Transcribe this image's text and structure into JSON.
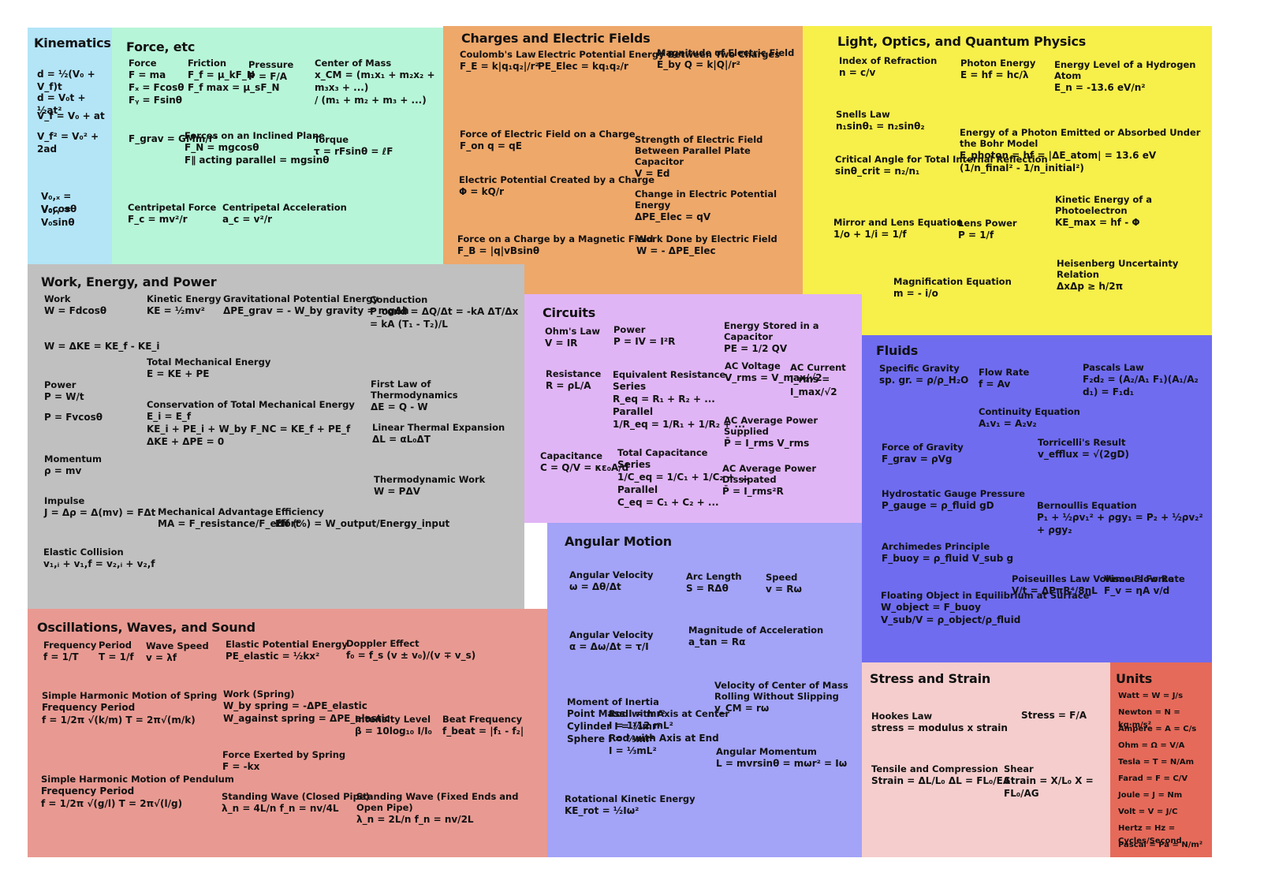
{
  "sections": [
    {
      "title": "Kinematics",
      "color": "#b3e5f7",
      "items": [
        {
          "lines": [
            "d = ½(V₀ + V_f)t"
          ]
        },
        {
          "lines": [
            "d = V₀t + ½at²"
          ]
        },
        {
          "lines": [
            "V_f = V₀ + at"
          ]
        },
        {
          "lines": [
            "V_f² = V₀² + 2ad"
          ]
        },
        {
          "lines": [
            "V₀,ₓ = V₀cosθ"
          ]
        },
        {
          "lines": [
            "V₀,ᵧ = V₀sinθ"
          ]
        }
      ]
    },
    {
      "title": "Force, etc",
      "color": "#b7f5d8",
      "items": [
        {
          "label": "Force",
          "lines": [
            "F = ma",
            "Fₓ = Fcosθ",
            "Fᵧ = Fsinθ"
          ]
        },
        {
          "label": "Friction",
          "lines": [
            "F_f = μ_kF_N",
            "F_f max = μ_sF_N"
          ]
        },
        {
          "label": "Pressure",
          "lines": [
            "P = F/A"
          ]
        },
        {
          "label": "Center of Mass",
          "lines": [
            "x_CM = (m₁x₁ + m₂x₂ + m₃x₃ + ...)",
            "/ (m₁ + m₂ + m₃ + ...)"
          ]
        },
        {
          "lines": [
            "F_grav = GMm/r²"
          ]
        },
        {
          "label": "Forces on an Inclined Plane",
          "lines": [
            "F_N = mgcosθ",
            "F∥ acting parallel = mgsinθ"
          ]
        },
        {
          "label": "Torque",
          "lines": [
            "τ = rFsinθ = ℓF"
          ]
        },
        {
          "label": "Centripetal Force",
          "lines": [
            "F_c = mv²/r"
          ]
        },
        {
          "label": "Centripetal Acceleration",
          "lines": [
            "a_c = v²/r"
          ]
        }
      ]
    },
    {
      "title": "Charges and Electric Fields",
      "color": "#eea86a",
      "items": [
        {
          "label": "Coulomb's Law",
          "lines": [
            "F_E = k|q₁q₂|/r²"
          ]
        },
        {
          "label": "Electric Potential Energy Between Two Charges",
          "lines": [
            "PE_Elec = kq₁q₂/r"
          ]
        },
        {
          "label": "Magnitude of Electric Field",
          "lines": [
            "E_by Q = k|Q|/r²"
          ]
        },
        {
          "label": "Force of Electric Field on a Charge",
          "lines": [
            "F_on q = qE"
          ]
        },
        {
          "label": "Strength of Electric Field Between Parallel Plate Capacitor",
          "lines": [
            "V = Ed"
          ]
        },
        {
          "label": "Electric Potential Created by a Charge",
          "lines": [
            "Φ = kQ/r"
          ]
        },
        {
          "label": "Change in Electric Potential Energy",
          "lines": [
            "ΔPE_Elec = qV"
          ]
        },
        {
          "label": "Force on a Charge by a Magnetic Field",
          "lines": [
            "F_B = |q|vBsinθ"
          ]
        },
        {
          "label": "Work Done by Electric Field",
          "lines": [
            "W = - ΔPE_Elec"
          ]
        }
      ]
    },
    {
      "title": "Light, Optics, and Quantum Physics",
      "color": "#f7ef4a",
      "items": [
        {
          "label": "Index of Refraction",
          "lines": [
            "n = c/v"
          ]
        },
        {
          "label": "Photon Energy",
          "lines": [
            "E = hf = hc/λ"
          ]
        },
        {
          "label": "Energy Level of a Hydrogen Atom",
          "lines": [
            "E_n = -13.6 eV/n²"
          ]
        },
        {
          "label": "Snells Law",
          "lines": [
            "n₁sinθ₁ = n₂sinθ₂"
          ]
        },
        {
          "label": "Energy of a Photon Emitted or Absorbed Under the Bohr Model",
          "lines": [
            "E_photon = hf = |ΔE_atom| = 13.6 eV (1/n_final² - 1/n_initial²)"
          ]
        },
        {
          "label": "Critical Angle for Total Internal Reflection",
          "lines": [
            "sinθ_crit = n₂/n₁"
          ]
        },
        {
          "label": "Kinetic Energy of a Photoelectron",
          "lines": [
            "KE_max = hf - Φ"
          ]
        },
        {
          "label": "Mirror and Lens Equation",
          "lines": [
            "1/o + 1/i = 1/f"
          ]
        },
        {
          "label": "Lens Power",
          "lines": [
            "P = 1/f"
          ]
        },
        {
          "label": "Heisenberg Uncertainty Relation",
          "lines": [
            "ΔxΔp ≥ h/2π"
          ]
        },
        {
          "label": "Magnification Equation",
          "lines": [
            "m = - i/o"
          ]
        }
      ]
    },
    {
      "title": "Work, Energy, and Power",
      "color": "#c0c0c0",
      "items": [
        {
          "label": "Work",
          "lines": [
            "W = Fdcosθ"
          ]
        },
        {
          "lines": [
            "W = ΔKE = KE_f - KE_i"
          ]
        },
        {
          "label": "Kinetic Energy",
          "lines": [
            "KE = ½mv²"
          ]
        },
        {
          "label": "Gravitational Potential Energy",
          "lines": [
            "ΔPE_grav = - W_by gravity = mgΔh"
          ]
        },
        {
          "label": "Conduction",
          "lines": [
            "P_cond = ΔQ/Δt = -kA ΔT/Δx = kA (T₁ - T₂)/L"
          ]
        },
        {
          "label": "Total Mechanical Energy",
          "lines": [
            "E = KE + PE"
          ]
        },
        {
          "label": "Power",
          "lines": [
            "P = W/t",
            "",
            "P = Fvcosθ"
          ]
        },
        {
          "label": "Conservation of Total Mechanical Energy",
          "lines": [
            "E_i = E_f",
            "KE_i + PE_i + W_by F_NC = KE_f + PE_f",
            "ΔKE + ΔPE = 0"
          ]
        },
        {
          "label": "First Law of Thermodynamics",
          "lines": [
            "ΔE = Q - W"
          ]
        },
        {
          "label": "Linear Thermal Expansion",
          "lines": [
            "ΔL = αL₀ΔT"
          ]
        },
        {
          "label": "Momentum",
          "lines": [
            "ρ = mv"
          ]
        },
        {
          "label": "Thermodynamic Work",
          "lines": [
            "W = PΔV"
          ]
        },
        {
          "label": "Impulse",
          "lines": [
            "J = Δρ = Δ(mv) = FΔt"
          ]
        },
        {
          "label": "Mechanical Advantage",
          "lines": [
            "MA = F_resistance/F_effort"
          ]
        },
        {
          "label": "Efficiency",
          "lines": [
            "Eff (%) = W_output/Energy_input"
          ]
        },
        {
          "label": "Elastic Collision",
          "lines": [
            "v₁,ᵢ + v₁,f = v₂,ᵢ + v₂,f"
          ]
        }
      ]
    },
    {
      "title": "Circuits",
      "color": "#e0b5f5",
      "items": [
        {
          "label": "Ohm's Law",
          "lines": [
            "V = IR"
          ]
        },
        {
          "label": "Power",
          "lines": [
            "P = IV = I²R"
          ]
        },
        {
          "label": "Energy Stored in a Capacitor",
          "lines": [
            "PE = 1/2 QV"
          ]
        },
        {
          "label": "Resistance",
          "lines": [
            "R = ρL/A"
          ]
        },
        {
          "label": "Equivalent Resistance",
          "lines": [
            "Series",
            "R_eq = R₁ + R₂ + ...",
            "Parallel",
            "1/R_eq = 1/R₁ + 1/R₂ + ..."
          ]
        },
        {
          "label": "AC Voltage",
          "lines": [
            "V_rms = V_max/√2"
          ]
        },
        {
          "label": "AC Current",
          "lines": [
            "I_rms = I_max/√2"
          ]
        },
        {
          "label": "AC Average Power Supplied",
          "lines": [
            "P̄ = I_rms V_rms"
          ]
        },
        {
          "label": "Capacitance",
          "lines": [
            "C = Q/V = κε₀A/d"
          ]
        },
        {
          "label": "Total Capacitance",
          "lines": [
            "Series",
            "1/C_eq = 1/C₁ + 1/C₂ + ...",
            "Parallel",
            "C_eq = C₁ + C₂ + ..."
          ]
        },
        {
          "label": "AC Average Power Dissipated",
          "lines": [
            "P̄ = I_rms²R"
          ]
        }
      ]
    },
    {
      "title": "Fluids",
      "color": "#6f6cf0",
      "items": [
        {
          "label": "Specific Gravity",
          "lines": [
            "sp. gr. = ρ/ρ_H₂O"
          ]
        },
        {
          "label": "Flow Rate",
          "lines": [
            "f = Av"
          ]
        },
        {
          "label": "Pascals Law",
          "lines": [
            "F₂d₂ = (A₂/A₁ F₁)(A₁/A₂ d₁) = F₁d₁"
          ]
        },
        {
          "label": "Continuity Equation",
          "lines": [
            "A₁v₁ = A₂v₂"
          ]
        },
        {
          "label": "Torricelli's Result",
          "lines": [
            "v_efflux = √(2gD)"
          ]
        },
        {
          "label": "Force of Gravity",
          "lines": [
            "F_grav = ρVg"
          ]
        },
        {
          "label": "Hydrostatic Gauge Pressure",
          "lines": [
            "P_gauge = ρ_fluid gD"
          ]
        },
        {
          "label": "Bernoullis Equation",
          "lines": [
            "P₁ + ½ρv₁² + ρgy₁ = P₂ + ½ρv₂² + ρgy₂"
          ]
        },
        {
          "label": "Archimedes Principle",
          "lines": [
            "F_buoy = ρ_fluid V_sub g"
          ]
        },
        {
          "label": "Poiseuilles Law Volume Flow Rate",
          "lines": [
            "V/t = ΔPπR⁴/8ηL"
          ]
        },
        {
          "label": "Viscous Force",
          "lines": [
            "F_v = ηA v/d"
          ]
        },
        {
          "label": "Floating Object in Equilibrium at Surface",
          "lines": [
            "W_object = F_buoy",
            "V_sub/V = ρ_object/ρ_fluid"
          ]
        }
      ]
    },
    {
      "title": "Angular Motion",
      "color": "#a3a3f7",
      "items": [
        {
          "label": "Angular Velocity",
          "lines": [
            "ω = Δθ/Δt"
          ]
        },
        {
          "label": "Arc Length",
          "lines": [
            "S = RΔθ"
          ]
        },
        {
          "label": "Speed",
          "lines": [
            "v = Rω"
          ]
        },
        {
          "label": "Angular Velocity",
          "lines": [
            "α = Δω/Δt = τ/I"
          ]
        },
        {
          "label": "Magnitude of Acceleration",
          "lines": [
            "a_tan = Rα"
          ]
        },
        {
          "label": "Velocity of Center of Mass Rolling Without Slipping",
          "lines": [
            "v_CM = rω"
          ]
        },
        {
          "label": "Moment of Inertia",
          "lines": [
            "Point Mass  I = mr²",
            "Cylinder  I = ½mr²",
            "Sphere  I = ⅖mr²"
          ]
        },
        {
          "label": "Rod with Axis at Center",
          "lines": [
            "I = 1/12 mL²",
            "Rod with Axis at End",
            "I = ⅓mL²"
          ]
        },
        {
          "label": "Angular Momentum",
          "lines": [
            "L = mvrsinθ = mωr² = Iω"
          ]
        },
        {
          "label": "Rotational Kinetic Energy",
          "lines": [
            "KE_rot = ½Iω²"
          ]
        }
      ]
    },
    {
      "title": "Oscillations, Waves, and Sound",
      "color": "#e89a92",
      "items": [
        {
          "label": "Frequency",
          "lines": [
            "f = 1/T"
          ]
        },
        {
          "label": "Period",
          "lines": [
            "T = 1/f"
          ]
        },
        {
          "label": "Wave Speed",
          "lines": [
            "v = λf"
          ]
        },
        {
          "label": "Elastic Potential Energy",
          "lines": [
            "PE_elastic = ½kx²"
          ]
        },
        {
          "label": "Doppler Effect",
          "lines": [
            "f₀ = f_s (v ± v₀)/(v ∓ v_s)"
          ]
        },
        {
          "label": "Simple Harmonic Motion of Spring",
          "lines": [
            "Frequency        Period",
            "f = 1/2π √(k/m)    T = 2π√(m/k)"
          ]
        },
        {
          "label": "Work (Spring)",
          "lines": [
            "W_by spring = -ΔPE_elastic",
            "W_against spring = ΔPE_elastic"
          ]
        },
        {
          "label": "Intensity Level",
          "lines": [
            "β = 10log₁₀ I/I₀"
          ]
        },
        {
          "label": "Beat Frequency",
          "lines": [
            "f_beat = |f₁ - f₂|"
          ]
        },
        {
          "label": "Force Exerted by Spring",
          "lines": [
            "F = -kx"
          ]
        },
        {
          "label": "Simple Harmonic Motion of Pendulum",
          "lines": [
            "Frequency        Period",
            "f = 1/2π √(g/l)    T = 2π√(l/g)"
          ]
        },
        {
          "label": "Standing Wave (Closed Pipe)",
          "lines": [
            "λ_n = 4L/n    f_n = nv/4L"
          ]
        },
        {
          "label": "Standing Wave (Fixed Ends and Open Pipe)",
          "lines": [
            "λ_n = 2L/n    f_n = nv/2L"
          ]
        }
      ]
    },
    {
      "title": "Stress and Strain",
      "color": "#f5cdcd",
      "items": [
        {
          "label": "Hookes Law",
          "lines": [
            "stress = modulus x strain"
          ]
        },
        {
          "lines": [
            "Stress = F/A"
          ]
        },
        {
          "label": "Tensile and Compression",
          "lines": [
            "Strain = ΔL/L₀    ΔL = FL₀/EA"
          ]
        },
        {
          "label": "Shear",
          "lines": [
            "Strain = X/L₀    X = FL₀/AG"
          ]
        }
      ]
    },
    {
      "title": "Units",
      "color": "#e56a5a",
      "items": [
        {
          "lines": [
            "Watt = W = J/s"
          ]
        },
        {
          "lines": [
            "Newton = N = kg·m/s²"
          ]
        },
        {
          "lines": [
            "Ampere = A = C/s"
          ]
        },
        {
          "lines": [
            "Ohm = Ω = V/A"
          ]
        },
        {
          "lines": [
            "Tesla = T = N/Am"
          ]
        },
        {
          "lines": [
            "Farad = F = C/V"
          ]
        },
        {
          "lines": [
            "Joule = J = Nm"
          ]
        },
        {
          "lines": [
            "Volt = V = J/C"
          ]
        },
        {
          "lines": [
            "Hertz = Hz = Cycles/Second"
          ]
        },
        {
          "lines": [
            "Pascal = Pa = N/m²"
          ]
        }
      ]
    }
  ]
}
